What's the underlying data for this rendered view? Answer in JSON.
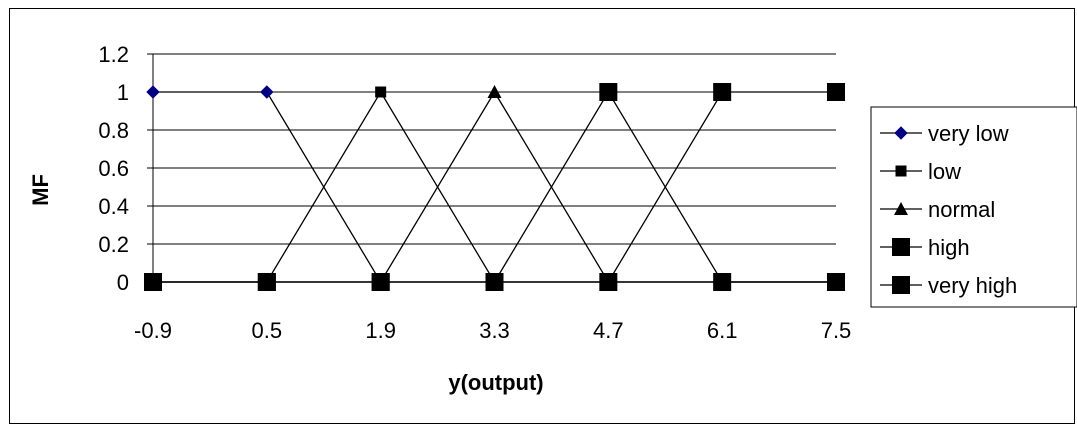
{
  "chart_data": {
    "type": "line",
    "title": "",
    "xlabel": "y(output)",
    "ylabel": "MF",
    "categories": [
      "-0.9",
      "0.5",
      "1.9",
      "3.3",
      "4.7",
      "6.1",
      "7.5"
    ],
    "ylim": [
      0,
      1.2
    ],
    "yticks": [
      "0",
      "0.2",
      "0.4",
      "0.6",
      "0.8",
      "1",
      "1.2"
    ],
    "grid": "horizontal",
    "legend_position": "right",
    "series": [
      {
        "name": "very low",
        "marker": "diamond",
        "color": "#000080",
        "values": [
          1,
          1,
          0,
          0,
          0,
          0,
          0
        ]
      },
      {
        "name": "low",
        "marker": "square-small",
        "color": "#000000",
        "values": [
          0,
          0,
          1,
          0,
          0,
          0,
          0
        ]
      },
      {
        "name": "normal",
        "marker": "triangle",
        "color": "#000000",
        "values": [
          0,
          0,
          0,
          1,
          0,
          0,
          0
        ]
      },
      {
        "name": "high",
        "marker": "square-large",
        "color": "#000000",
        "values": [
          0,
          0,
          0,
          0,
          1,
          0,
          0
        ]
      },
      {
        "name": "very high",
        "marker": "square-large",
        "color": "#000000",
        "values": [
          0,
          0,
          0,
          0,
          0,
          1,
          1
        ]
      }
    ]
  }
}
